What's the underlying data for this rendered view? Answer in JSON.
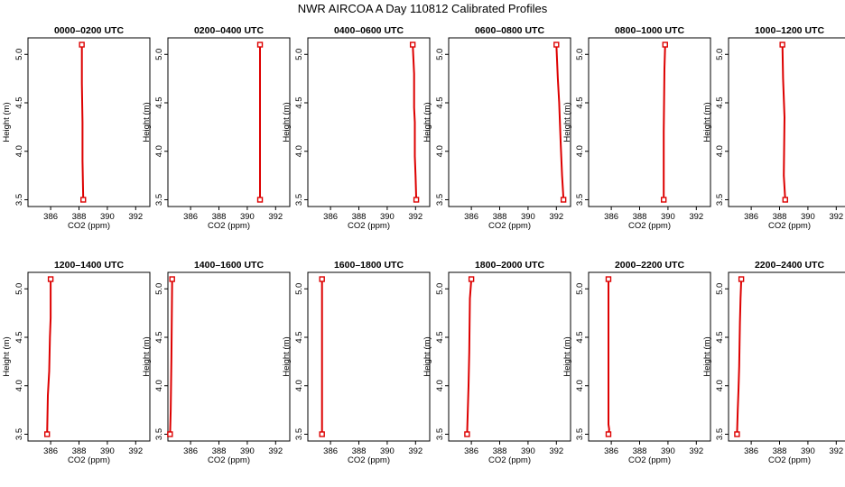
{
  "figure": {
    "title": "NWR AIRCOA A  Day 110812  Calibrated Profiles"
  },
  "chart_data": [
    {
      "type": "line",
      "title": "0000–0200 UTC",
      "xlabel": "CO2 (ppm)",
      "ylabel": "Height (m)",
      "xlim": [
        384.4,
        393.0
      ],
      "ylim": [
        3.43,
        5.17
      ],
      "xticks": [
        386,
        388,
        390,
        392
      ],
      "yticks": [
        3.5,
        4.0,
        4.5,
        5.0
      ],
      "series": [
        {
          "color": "#dd0000",
          "points": [
            [
              388.2,
              5.1
            ],
            [
              388.2,
              4.7
            ],
            [
              388.25,
              4.3
            ],
            [
              388.25,
              3.9
            ],
            [
              388.3,
              3.5
            ]
          ]
        }
      ]
    },
    {
      "type": "line",
      "title": "0200–0400 UTC",
      "xlabel": "CO2 (ppm)",
      "ylabel": "Height (m)",
      "xlim": [
        384.4,
        393.0
      ],
      "ylim": [
        3.43,
        5.17
      ],
      "xticks": [
        386,
        388,
        390,
        392
      ],
      "yticks": [
        3.5,
        4.0,
        4.5,
        5.0
      ],
      "series": [
        {
          "color": "#dd0000",
          "points": [
            [
              390.9,
              5.1
            ],
            [
              390.9,
              4.5
            ],
            [
              390.9,
              4.0
            ],
            [
              390.9,
              3.5
            ]
          ]
        }
      ]
    },
    {
      "type": "line",
      "title": "0400–0600 UTC",
      "xlabel": "CO2 (ppm)",
      "ylabel": "Height (m)",
      "xlim": [
        384.4,
        393.0
      ],
      "ylim": [
        3.43,
        5.17
      ],
      "xticks": [
        386,
        388,
        390,
        392
      ],
      "yticks": [
        3.5,
        4.0,
        4.5,
        5.0
      ],
      "series": [
        {
          "color": "#dd0000",
          "points": [
            [
              391.8,
              5.1
            ],
            [
              391.9,
              4.8
            ],
            [
              391.9,
              4.45
            ],
            [
              391.95,
              4.3
            ],
            [
              391.95,
              3.95
            ],
            [
              392.0,
              3.75
            ],
            [
              392.05,
              3.5
            ]
          ]
        }
      ]
    },
    {
      "type": "line",
      "title": "0600–0800 UTC",
      "xlabel": "CO2 (ppm)",
      "ylabel": "Height (m)",
      "xlim": [
        384.4,
        393.0
      ],
      "ylim": [
        3.43,
        5.17
      ],
      "xticks": [
        386,
        388,
        390,
        392
      ],
      "yticks": [
        3.5,
        4.0,
        4.5,
        5.0
      ],
      "series": [
        {
          "color": "#dd0000",
          "points": [
            [
              392.0,
              5.1
            ],
            [
              392.1,
              4.75
            ],
            [
              392.2,
              4.5
            ],
            [
              392.3,
              4.1
            ],
            [
              392.4,
              3.75
            ],
            [
              392.5,
              3.5
            ]
          ]
        }
      ]
    },
    {
      "type": "line",
      "title": "0800–1000 UTC",
      "xlabel": "CO2 (ppm)",
      "ylabel": "Height (m)",
      "xlim": [
        384.4,
        393.0
      ],
      "ylim": [
        3.43,
        5.17
      ],
      "xticks": [
        386,
        388,
        390,
        392
      ],
      "yticks": [
        3.5,
        4.0,
        4.5,
        5.0
      ],
      "series": [
        {
          "color": "#dd0000",
          "points": [
            [
              389.8,
              5.1
            ],
            [
              389.75,
              4.85
            ],
            [
              389.7,
              4.2
            ],
            [
              389.7,
              3.5
            ]
          ]
        }
      ]
    },
    {
      "type": "line",
      "title": "1000–1200 UTC",
      "xlabel": "CO2 (ppm)",
      "ylabel": "Height (m)",
      "xlim": [
        384.4,
        393.0
      ],
      "ylim": [
        3.43,
        5.17
      ],
      "xticks": [
        386,
        388,
        390,
        392
      ],
      "yticks": [
        3.5,
        4.0,
        4.5,
        5.0
      ],
      "series": [
        {
          "color": "#dd0000",
          "points": [
            [
              388.2,
              5.1
            ],
            [
              388.25,
              4.75
            ],
            [
              388.35,
              4.35
            ],
            [
              388.3,
              3.75
            ],
            [
              388.4,
              3.5
            ]
          ]
        }
      ]
    },
    {
      "type": "line",
      "title": "1200–1400 UTC",
      "xlabel": "CO2 (ppm)",
      "ylabel": "Height (m)",
      "xlim": [
        384.4,
        393.0
      ],
      "ylim": [
        3.43,
        5.17
      ],
      "xticks": [
        386,
        388,
        390,
        392
      ],
      "yticks": [
        3.5,
        4.0,
        4.5,
        5.0
      ],
      "series": [
        {
          "color": "#dd0000",
          "points": [
            [
              386.0,
              5.1
            ],
            [
              386.0,
              4.7
            ],
            [
              385.95,
              4.5
            ],
            [
              385.9,
              4.15
            ],
            [
              385.8,
              3.9
            ],
            [
              385.75,
              3.5
            ]
          ]
        }
      ]
    },
    {
      "type": "line",
      "title": "1400–1600 UTC",
      "xlabel": "CO2 (ppm)",
      "ylabel": "Height (m)",
      "xlim": [
        384.4,
        393.0
      ],
      "ylim": [
        3.43,
        5.17
      ],
      "xticks": [
        386,
        388,
        390,
        392
      ],
      "yticks": [
        3.5,
        4.0,
        4.5,
        5.0
      ],
      "series": [
        {
          "color": "#dd0000",
          "points": [
            [
              384.7,
              5.1
            ],
            [
              384.65,
              4.3
            ],
            [
              384.6,
              3.75
            ],
            [
              384.55,
              3.5
            ]
          ]
        }
      ]
    },
    {
      "type": "line",
      "title": "1600–1800 UTC",
      "xlabel": "CO2 (ppm)",
      "ylabel": "Height (m)",
      "xlim": [
        384.4,
        393.0
      ],
      "ylim": [
        3.43,
        5.17
      ],
      "xticks": [
        386,
        388,
        390,
        392
      ],
      "yticks": [
        3.5,
        4.0,
        4.5,
        5.0
      ],
      "series": [
        {
          "color": "#dd0000",
          "points": [
            [
              385.4,
              5.1
            ],
            [
              385.4,
              4.2
            ],
            [
              385.4,
              3.5
            ]
          ]
        }
      ]
    },
    {
      "type": "line",
      "title": "1800–2000 UTC",
      "xlabel": "CO2 (ppm)",
      "ylabel": "Height (m)",
      "xlim": [
        384.4,
        393.0
      ],
      "ylim": [
        3.43,
        5.17
      ],
      "xticks": [
        386,
        388,
        390,
        392
      ],
      "yticks": [
        3.5,
        4.0,
        4.5,
        5.0
      ],
      "series": [
        {
          "color": "#dd0000",
          "points": [
            [
              386.0,
              5.1
            ],
            [
              385.9,
              4.9
            ],
            [
              385.85,
              4.35
            ],
            [
              385.8,
              4.0
            ],
            [
              385.75,
              3.75
            ],
            [
              385.7,
              3.5
            ]
          ]
        }
      ]
    },
    {
      "type": "line",
      "title": "2000–2200 UTC",
      "xlabel": "CO2 (ppm)",
      "ylabel": "Height (m)",
      "xlim": [
        384.4,
        393.0
      ],
      "ylim": [
        3.43,
        5.17
      ],
      "xticks": [
        386,
        388,
        390,
        392
      ],
      "yticks": [
        3.5,
        4.0,
        4.5,
        5.0
      ],
      "series": [
        {
          "color": "#dd0000",
          "points": [
            [
              385.8,
              5.1
            ],
            [
              385.8,
              3.6
            ],
            [
              385.85,
              3.55
            ],
            [
              385.8,
              3.5
            ]
          ]
        }
      ]
    },
    {
      "type": "line",
      "title": "2200–2400 UTC",
      "xlabel": "CO2 (ppm)",
      "ylabel": "Height (m)",
      "xlim": [
        384.4,
        393.0
      ],
      "ylim": [
        3.43,
        5.17
      ],
      "xticks": [
        386,
        388,
        390,
        392
      ],
      "yticks": [
        3.5,
        4.0,
        4.5,
        5.0
      ],
      "series": [
        {
          "color": "#dd0000",
          "points": [
            [
              385.3,
              5.1
            ],
            [
              385.25,
              4.9
            ],
            [
              385.2,
              4.65
            ],
            [
              385.15,
              4.2
            ],
            [
              385.1,
              3.95
            ],
            [
              385.05,
              3.75
            ],
            [
              385.0,
              3.5
            ]
          ]
        }
      ]
    }
  ]
}
